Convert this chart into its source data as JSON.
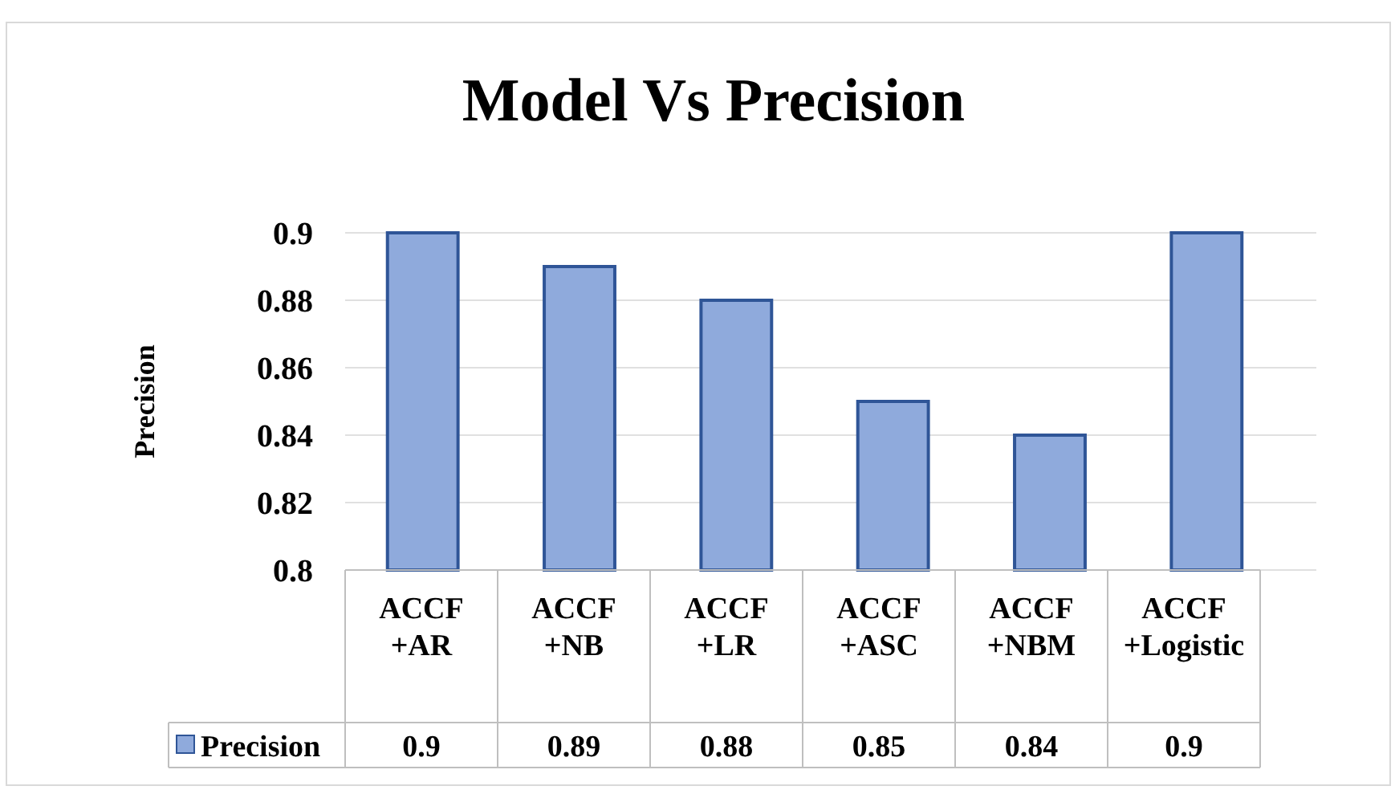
{
  "chart_data": {
    "type": "bar",
    "title": "Model Vs Precision",
    "ylabel": "Precision",
    "categories": [
      "ACCF +AR",
      "ACCF +NB",
      "ACCF +LR",
      "ACCF +ASC",
      "ACCF +NBM",
      "ACCF +Logistic"
    ],
    "series": [
      {
        "name": "Precision",
        "color": "#8faadc",
        "values": [
          0.9,
          0.89,
          0.88,
          0.85,
          0.84,
          0.9
        ]
      }
    ],
    "ylim": [
      0.8,
      0.9
    ],
    "yticks": [
      0.8,
      0.82,
      0.84,
      0.86,
      0.88,
      0.9
    ],
    "grid": "y",
    "legend": "bottom",
    "data_labels": true
  }
}
